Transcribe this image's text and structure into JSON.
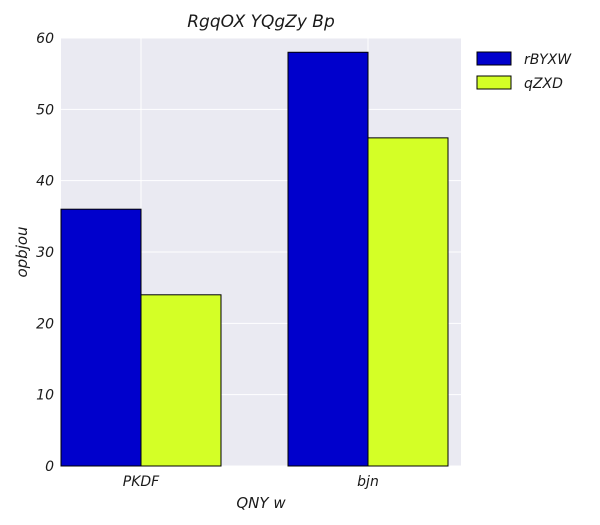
{
  "chart_data": {
    "type": "bar",
    "title": "RgqOX YQgZy Bp",
    "xlabel": "QNY w",
    "ylabel": "opbjou",
    "categories": [
      "PKDF",
      "bjn"
    ],
    "series": [
      {
        "name": "rBYXW",
        "values": [
          36,
          58
        ],
        "color": "#0000cc"
      },
      {
        "name": "qZXD",
        "values": [
          24,
          46
        ],
        "color": "#d4ff26"
      }
    ],
    "ylim": [
      0,
      60
    ],
    "yticks": [
      0,
      10,
      20,
      30,
      40,
      50,
      60
    ],
    "grid": true,
    "legend_position": "outside-top-right",
    "background_color": "#eaeaf2",
    "grid_color": "#ffffff"
  }
}
